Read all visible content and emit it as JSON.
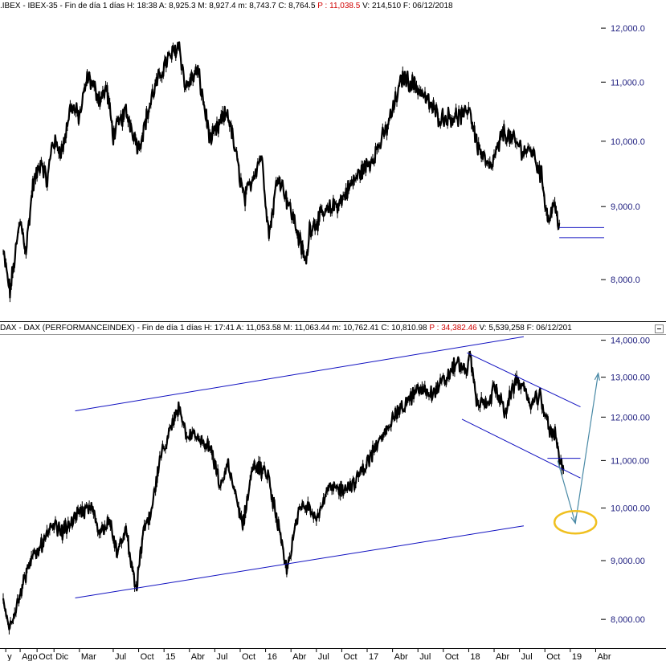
{
  "colors": {
    "price": "#000000",
    "trendline": "#1010c0",
    "arrow": "#4a8aa6",
    "circle": "#f0c020",
    "axis_text": "#202080",
    "header_red": "#d00000"
  },
  "panels": [
    {
      "header": {
        "symbol": ".IBEX",
        "name": "IBEX-35",
        "period": "Fin de día 1 días",
        "fields": [
          {
            "label": "H:",
            "value": "18:38",
            "red": false
          },
          {
            "label": "A:",
            "value": "8,925.3",
            "red": false
          },
          {
            "label": "M:",
            "value": "8,927.4",
            "red": false
          },
          {
            "label": "m:",
            "value": "8,743.7",
            "red": false
          },
          {
            "label": "C:",
            "value": "8,764.5",
            "red": false
          },
          {
            "label": "P :",
            "value": "11,038.5",
            "red": true
          },
          {
            "label": "V:",
            "value": "214,510",
            "red": false
          },
          {
            "label": "F:",
            "value": "06/12/2018",
            "red": false
          }
        ]
      }
    },
    {
      "header": {
        "symbol": "DAX",
        "name": "DAX (PERFORMANCEINDEX)",
        "period": "Fin de día 1 días",
        "fields": [
          {
            "label": "H:",
            "value": "17:41",
            "red": false
          },
          {
            "label": "A:",
            "value": "11,053.58",
            "red": false
          },
          {
            "label": "M:",
            "value": "11,063.44",
            "red": false
          },
          {
            "label": "m:",
            "value": "10,762.41",
            "red": false
          },
          {
            "label": "C:",
            "value": "10,810.98",
            "red": false
          },
          {
            "label": "P :",
            "value": "34,382.46",
            "red": true
          },
          {
            "label": "V:",
            "value": "5,539,258",
            "red": false
          },
          {
            "label": "F:",
            "value": "06/12/201",
            "red": false
          }
        ]
      }
    }
  ],
  "x_axis": {
    "labels": [
      "y",
      "Ago",
      "Oct",
      "Dic",
      "Mar",
      "Jul",
      "Oct",
      "15",
      "Abr",
      "Jul",
      "Oct",
      "16",
      "Abr",
      "Jul",
      "Oct",
      "17",
      "Abr",
      "Jul",
      "Oct",
      "18",
      "Abr",
      "Jul",
      "Oct",
      "19",
      "Abr"
    ],
    "label_t": [
      0.3,
      2,
      4,
      6,
      9,
      13,
      16,
      19,
      22,
      25,
      28,
      31,
      34,
      37,
      40,
      43,
      46,
      49,
      52,
      55,
      58,
      61,
      64,
      67,
      70
    ]
  },
  "chart_data": [
    {
      "type": "line",
      "title": ".IBEX - IBEX-35",
      "scale": "log",
      "ylim": [
        7500,
        12300
      ],
      "yticks": [
        8000,
        9000,
        10000,
        11000,
        12000
      ],
      "ytick_labels": [
        "8,000.0",
        "9,000.0",
        "10,000.0",
        "11,000.0",
        "12,000.0"
      ],
      "xlim_months": [
        0,
        71
      ],
      "series": [
        {
          "t": [
            0,
            0.8,
            2,
            2.7,
            3.5,
            4.5,
            5.2,
            5.8,
            7,
            8,
            9,
            10,
            11.5,
            12.2,
            13,
            14.5,
            16,
            17.7,
            19,
            20.8,
            21.5,
            23,
            24.5,
            26.5,
            28.5,
            30.5,
            31.4,
            32.5,
            34.5,
            35.8,
            36.2,
            37.5,
            40,
            41.5,
            43.5,
            45,
            46,
            47.2,
            49,
            51.5,
            54.5,
            55,
            56,
            57.5,
            58.5,
            59,
            60,
            61.5,
            62.5,
            63.6,
            64.4,
            65,
            65.7
          ],
          "values": [
            8350,
            7850,
            8800,
            8400,
            9300,
            9700,
            9350,
            10000,
            9850,
            10600,
            10400,
            11100,
            10700,
            10900,
            10100,
            10500,
            9900,
            10800,
            11300,
            11700,
            10900,
            11200,
            10000,
            10500,
            9100,
            9800,
            8600,
            9500,
            8750,
            8200,
            8700,
            8850,
            9100,
            9400,
            9700,
            10100,
            10500,
            11100,
            10900,
            10400,
            10400,
            10600,
            9950,
            9550,
            9900,
            10150,
            10050,
            9850,
            9850,
            9450,
            8800,
            9050,
            8765
          ]
        }
      ],
      "lines": [
        {
          "t": [
            65.7,
            71
          ],
          "values": [
            8700,
            8700
          ]
        },
        {
          "t": [
            65.7,
            71
          ],
          "values": [
            8560,
            8560
          ]
        }
      ]
    },
    {
      "type": "line",
      "title": "DAX - DAX (PERFORMANCEINDEX)",
      "scale": "log",
      "ylim": [
        7600,
        14150
      ],
      "yticks": [
        8000,
        9000,
        10000,
        11000,
        12000,
        13000,
        14000
      ],
      "ytick_labels": [
        "8,000.00",
        "9,000.00",
        "10,000.00",
        "11,000.00",
        "12,000.00",
        "13,000.00",
        "14,000.00"
      ],
      "xlim_months": [
        0,
        71
      ],
      "series": [
        {
          "t": [
            0,
            0.7,
            2,
            3,
            4.5,
            6,
            7,
            9,
            10.5,
            11.5,
            12.5,
            13.5,
            14.5,
            15.7,
            16.5,
            17.5,
            18.5,
            20,
            20.8,
            21.5,
            23,
            24.5,
            25.7,
            26.5,
            27.5,
            28.3,
            29.5,
            31.2,
            32.2,
            33.5,
            35,
            36,
            37,
            38.5,
            40,
            41.5,
            42.5,
            44.5,
            46,
            47.5,
            49,
            50.8,
            52.5,
            53.5,
            54.7,
            55.2,
            56,
            57.5,
            58,
            59.3,
            60.5,
            61.5,
            62,
            63.5,
            64.5,
            65.2,
            65.8,
            66.2
          ],
          "values": [
            8300,
            7850,
            8450,
            8900,
            9300,
            9650,
            9550,
            9900,
            10000,
            9500,
            9800,
            9100,
            9600,
            8450,
            9500,
            9900,
            11000,
            11800,
            12300,
            11650,
            11500,
            11250,
            10400,
            10950,
            10200,
            9650,
            10900,
            10700,
            9900,
            8800,
            10000,
            10100,
            9800,
            10400,
            10400,
            10500,
            10800,
            11450,
            12000,
            12300,
            12700,
            12600,
            13000,
            13400,
            13150,
            13550,
            12300,
            12400,
            12800,
            12100,
            12900,
            12800,
            12300,
            12500,
            11700,
            11600,
            11050,
            10800
          ]
        }
      ],
      "lines": [
        {
          "t": [
            8.5,
            61.5
          ],
          "values": [
            8350,
            9650
          ],
          "kind": "channel-lower"
        },
        {
          "t": [
            8.5,
            61.5
          ],
          "values": [
            12150,
            14100
          ],
          "kind": "channel-upper"
        },
        {
          "t": [
            54.8,
            68.2
          ],
          "values": [
            13650,
            12250
          ],
          "kind": "down-upper"
        },
        {
          "t": [
            54.2,
            68.2
          ],
          "values": [
            11950,
            10620
          ],
          "kind": "down-lower"
        },
        {
          "t": [
            64.3,
            68.2
          ],
          "values": [
            11050,
            11050
          ],
          "kind": "horizontal"
        }
      ],
      "arrows": [
        {
          "t": [
            65.5,
            67.6
          ],
          "values": [
            11000,
            9700
          ],
          "kind": "projection-down"
        },
        {
          "t": [
            67.6,
            70.3
          ],
          "values": [
            9700,
            13100
          ],
          "kind": "projection-up"
        }
      ],
      "highlight": {
        "t": 67.6,
        "value": 9720,
        "shape": "ellipse",
        "color": "circle"
      }
    }
  ]
}
